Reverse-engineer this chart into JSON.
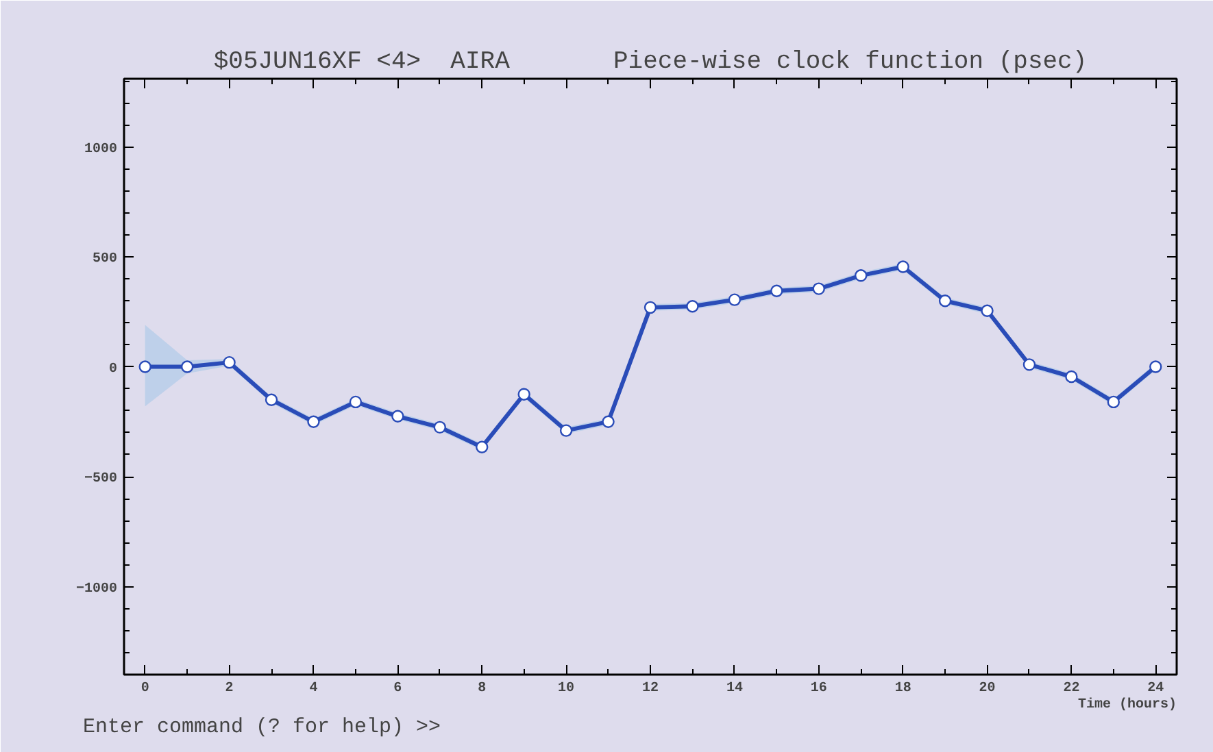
{
  "chart_data": {
    "type": "line",
    "title": "$05JUN16XF <4>  AIRA       Piece-wise clock function (psec)",
    "xlabel": "Time (hours)",
    "annotations": [
      "Enter command (? for help) >>"
    ],
    "x": [
      0,
      1,
      2,
      3,
      4,
      5,
      6,
      7,
      8,
      9,
      10,
      11,
      12,
      13,
      14,
      15,
      16,
      17,
      18,
      19,
      20,
      21,
      22,
      23,
      24
    ],
    "series": [
      {
        "color": "#2a4cb8",
        "values": [
          0,
          0,
          20,
          -150,
          -250,
          -160,
          -225,
          -275,
          -365,
          -125,
          -290,
          -250,
          270,
          275,
          305,
          345,
          355,
          415,
          455,
          300,
          255,
          10,
          -45,
          -160,
          0
        ],
        "lower": [
          -180,
          -30,
          5,
          -165,
          -265,
          -175,
          -240,
          -290,
          -380,
          -140,
          -305,
          -265,
          255,
          260,
          290,
          330,
          340,
          400,
          440,
          285,
          240,
          -5,
          -60,
          -175,
          -15
        ],
        "upper": [
          190,
          30,
          35,
          -135,
          -235,
          -145,
          -210,
          -260,
          -350,
          -110,
          -275,
          -235,
          285,
          290,
          320,
          360,
          370,
          430,
          470,
          315,
          270,
          25,
          -30,
          -145,
          15
        ]
      }
    ],
    "xlim": [
      -0.5,
      24.5
    ],
    "ylim": [
      -1400,
      1310
    ],
    "xticks": [
      0,
      2,
      4,
      6,
      8,
      10,
      12,
      14,
      16,
      18,
      20,
      22,
      24
    ],
    "yticks": [
      -1000,
      -500,
      0,
      500,
      1000
    ],
    "grid": false,
    "marker": "circle",
    "line_style": "solid"
  }
}
